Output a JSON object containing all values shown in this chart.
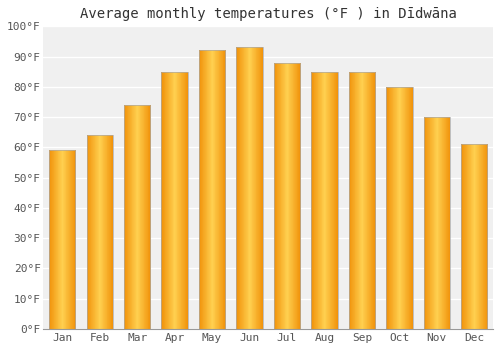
{
  "title": "Average monthly temperatures (°F ) in Dīdwāna",
  "months": [
    "Jan",
    "Feb",
    "Mar",
    "Apr",
    "May",
    "Jun",
    "Jul",
    "Aug",
    "Sep",
    "Oct",
    "Nov",
    "Dec"
  ],
  "values": [
    59,
    64,
    74,
    85,
    92,
    93,
    88,
    85,
    85,
    80,
    70,
    61
  ],
  "ylim": [
    0,
    100
  ],
  "yticks": [
    0,
    10,
    20,
    30,
    40,
    50,
    60,
    70,
    80,
    90,
    100
  ],
  "ytick_labels": [
    "0°F",
    "10°F",
    "20°F",
    "30°F",
    "40°F",
    "50°F",
    "60°F",
    "70°F",
    "80°F",
    "90°F",
    "100°F"
  ],
  "bar_color_center": "#FFD050",
  "bar_color_edge": "#F0920A",
  "bar_edge_color": "#AAAAAA",
  "background_color": "#ffffff",
  "plot_bg_color": "#f0f0f0",
  "grid_color": "#ffffff",
  "title_fontsize": 10,
  "tick_fontsize": 8,
  "bar_width": 0.7
}
